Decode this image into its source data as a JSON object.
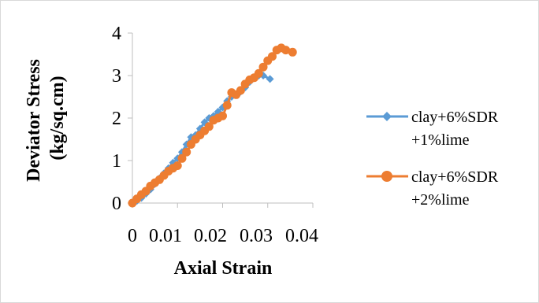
{
  "chart_data": {
    "type": "scatter",
    "xlabel": "Axial Strain",
    "ylabel": "Deviator Stress (kg/sq.cm)",
    "ylabel_lines": [
      "Deviator Stress",
      "(kg/sq.cm)"
    ],
    "xlim": [
      0,
      0.04
    ],
    "ylim": [
      0,
      4
    ],
    "x_ticks": [
      0,
      0.01,
      0.02,
      0.03,
      0.04
    ],
    "x_tick_labels": [
      "0",
      "0.01",
      "0.02",
      "0.03",
      "0.04"
    ],
    "y_ticks": [
      0,
      1,
      2,
      3,
      4
    ],
    "y_tick_labels": [
      "0",
      "1",
      "2",
      "3",
      "4"
    ],
    "grid": false,
    "legend_position": "right",
    "series": [
      {
        "name": "clay+6%SDR +1%lime",
        "legend_lines": [
          "clay+6%SDR",
          "+1%lime"
        ],
        "color": "#5b9bd5",
        "marker": "diamond",
        "points": [
          [
            0,
            0
          ],
          [
            0.001,
            0.05
          ],
          [
            0.002,
            0.12
          ],
          [
            0.003,
            0.22
          ],
          [
            0.004,
            0.32
          ],
          [
            0.005,
            0.45
          ],
          [
            0.006,
            0.58
          ],
          [
            0.007,
            0.7
          ],
          [
            0.008,
            0.82
          ],
          [
            0.009,
            0.95
          ],
          [
            0.01,
            1.05
          ],
          [
            0.011,
            1.2
          ],
          [
            0.012,
            1.38
          ],
          [
            0.013,
            1.55
          ],
          [
            0.014,
            1.6
          ],
          [
            0.015,
            1.75
          ],
          [
            0.016,
            1.9
          ],
          [
            0.017,
            2.0
          ],
          [
            0.018,
            2.05
          ],
          [
            0.019,
            2.15
          ],
          [
            0.02,
            2.25
          ],
          [
            0.021,
            2.4
          ],
          [
            0.022,
            2.5
          ],
          [
            0.023,
            2.55
          ],
          [
            0.024,
            2.62
          ],
          [
            0.025,
            2.72
          ],
          [
            0.026,
            2.85
          ],
          [
            0.027,
            2.95
          ],
          [
            0.028,
            3.0
          ],
          [
            0.029,
            3.0
          ],
          [
            0.0305,
            2.92
          ]
        ]
      },
      {
        "name": "clay+6%SDR +2%lime",
        "legend_lines": [
          "clay+6%SDR",
          "+2%lime"
        ],
        "color": "#ed7d31",
        "marker": "circle",
        "points": [
          [
            0,
            0
          ],
          [
            0.001,
            0.1
          ],
          [
            0.002,
            0.2
          ],
          [
            0.003,
            0.28
          ],
          [
            0.004,
            0.4
          ],
          [
            0.005,
            0.48
          ],
          [
            0.006,
            0.55
          ],
          [
            0.007,
            0.65
          ],
          [
            0.008,
            0.75
          ],
          [
            0.009,
            0.82
          ],
          [
            0.01,
            0.88
          ],
          [
            0.011,
            1.05
          ],
          [
            0.012,
            1.2
          ],
          [
            0.013,
            1.38
          ],
          [
            0.014,
            1.5
          ],
          [
            0.015,
            1.6
          ],
          [
            0.016,
            1.7
          ],
          [
            0.017,
            1.8
          ],
          [
            0.018,
            1.95
          ],
          [
            0.019,
            2.0
          ],
          [
            0.02,
            2.05
          ],
          [
            0.021,
            2.3
          ],
          [
            0.022,
            2.6
          ],
          [
            0.023,
            2.55
          ],
          [
            0.024,
            2.65
          ],
          [
            0.025,
            2.8
          ],
          [
            0.026,
            2.9
          ],
          [
            0.027,
            2.95
          ],
          [
            0.028,
            3.05
          ],
          [
            0.029,
            3.2
          ],
          [
            0.03,
            3.35
          ],
          [
            0.031,
            3.45
          ],
          [
            0.032,
            3.6
          ],
          [
            0.033,
            3.65
          ],
          [
            0.034,
            3.6
          ],
          [
            0.0355,
            3.55
          ]
        ]
      }
    ]
  }
}
